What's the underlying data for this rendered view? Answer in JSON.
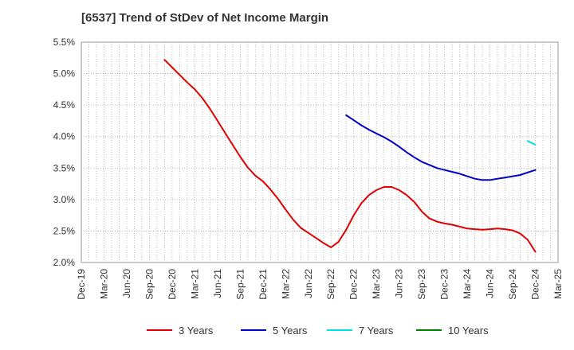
{
  "chart_data": {
    "type": "line",
    "title": "[6537]  Trend of StDev of Net Income Margin",
    "xlabel": "",
    "ylabel": "",
    "ylim": [
      0.02,
      0.055
    ],
    "y_ticks": [
      "2.0%",
      "2.5%",
      "3.0%",
      "3.5%",
      "4.0%",
      "4.5%",
      "5.0%",
      "5.5%"
    ],
    "x_ticks": [
      "Dec-19",
      "Mar-20",
      "Jun-20",
      "Sep-20",
      "Dec-20",
      "Mar-21",
      "Jun-21",
      "Sep-21",
      "Dec-21",
      "Mar-22",
      "Jun-22",
      "Sep-22",
      "Dec-22",
      "Mar-23",
      "Jun-23",
      "Sep-23",
      "Dec-23",
      "Mar-24",
      "Jun-24",
      "Sep-24",
      "Dec-24",
      "Mar-25"
    ],
    "grid": true,
    "legend_position": "bottom",
    "series": [
      {
        "name": "3 Years",
        "color": "#e00000",
        "x": [
          "Nov-20",
          "Dec-20",
          "Jan-21",
          "Feb-21",
          "Mar-21",
          "Apr-21",
          "May-21",
          "Jun-21",
          "Jul-21",
          "Aug-21",
          "Sep-21",
          "Oct-21",
          "Nov-21",
          "Dec-21",
          "Jan-22",
          "Feb-22",
          "Mar-22",
          "Apr-22",
          "May-22",
          "Jun-22",
          "Jul-22",
          "Aug-22",
          "Sep-22",
          "Oct-22",
          "Nov-22",
          "Dec-22",
          "Jan-23",
          "Feb-23",
          "Mar-23",
          "Apr-23",
          "May-23",
          "Jun-23",
          "Jul-23",
          "Aug-23",
          "Sep-23",
          "Oct-23",
          "Nov-23",
          "Dec-23",
          "Jan-24",
          "Feb-24",
          "Mar-24",
          "Apr-24",
          "May-24",
          "Jun-24",
          "Jul-24",
          "Aug-24",
          "Sep-24",
          "Oct-24",
          "Nov-24",
          "Dec-24"
        ],
        "values": [
          0.0522,
          0.051,
          0.0498,
          0.0486,
          0.0475,
          0.0461,
          0.0444,
          0.0425,
          0.0406,
          0.0387,
          0.0368,
          0.0351,
          0.0338,
          0.0329,
          0.0316,
          0.0301,
          0.0284,
          0.0268,
          0.0255,
          0.0247,
          0.0239,
          0.0231,
          0.0224,
          0.0233,
          0.0252,
          0.0275,
          0.0294,
          0.0307,
          0.0315,
          0.032,
          0.032,
          0.0315,
          0.0307,
          0.0296,
          0.0281,
          0.027,
          0.0265,
          0.0262,
          0.026,
          0.0257,
          0.0254,
          0.0253,
          0.0252,
          0.0253,
          0.0254,
          0.0253,
          0.0251,
          0.0246,
          0.0236,
          0.0217
        ]
      },
      {
        "name": "5 Years",
        "color": "#0000c8",
        "x": [
          "Nov-22",
          "Dec-22",
          "Jan-23",
          "Feb-23",
          "Mar-23",
          "Apr-23",
          "May-23",
          "Jun-23",
          "Jul-23",
          "Aug-23",
          "Sep-23",
          "Oct-23",
          "Nov-23",
          "Dec-23",
          "Jan-24",
          "Feb-24",
          "Mar-24",
          "Apr-24",
          "May-24",
          "Jun-24",
          "Jul-24",
          "Aug-24",
          "Sep-24",
          "Oct-24",
          "Nov-24",
          "Dec-24"
        ],
        "values": [
          0.0434,
          0.0426,
          0.0418,
          0.0411,
          0.0405,
          0.0399,
          0.0392,
          0.0384,
          0.0375,
          0.0367,
          0.036,
          0.0355,
          0.035,
          0.0347,
          0.0344,
          0.0341,
          0.0337,
          0.0333,
          0.0331,
          0.0331,
          0.0333,
          0.0335,
          0.0337,
          0.0339,
          0.0343,
          0.0347
        ]
      },
      {
        "name": "7 Years",
        "color": "#00e0e0",
        "x": [
          "Nov-24",
          "Dec-24"
        ],
        "values": [
          0.0393,
          0.0387
        ]
      },
      {
        "name": "10 Years",
        "color": "#008000",
        "x": [],
        "values": []
      }
    ]
  }
}
